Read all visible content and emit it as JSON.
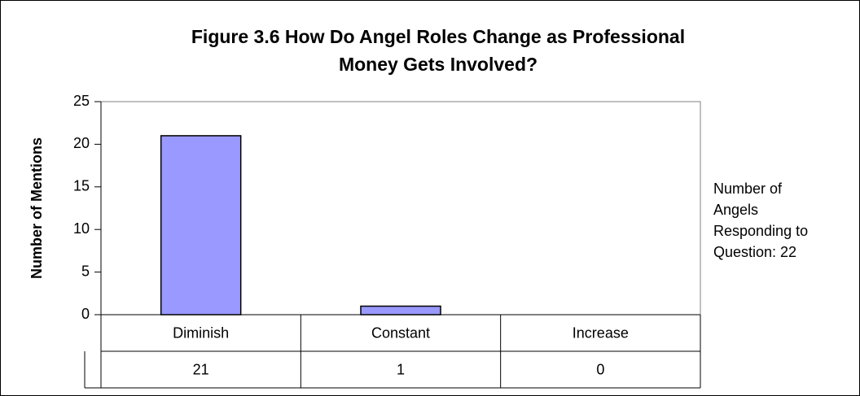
{
  "chart_data": {
    "type": "bar",
    "title": [
      "Figure 3.6 How Do Angel Roles Change as Professional",
      "Money Gets Involved?"
    ],
    "y_label": "Number of Mentions",
    "categories": [
      "Diminish",
      "Constant",
      "Increase"
    ],
    "values": [
      21,
      1,
      0
    ],
    "color": "#9999ff",
    "ylim": [
      0,
      25
    ],
    "yticks": [
      0,
      5,
      10,
      15,
      20,
      25
    ],
    "annotation": [
      "Number of",
      "Angels",
      "Responding to",
      "Question: 22"
    ]
  }
}
